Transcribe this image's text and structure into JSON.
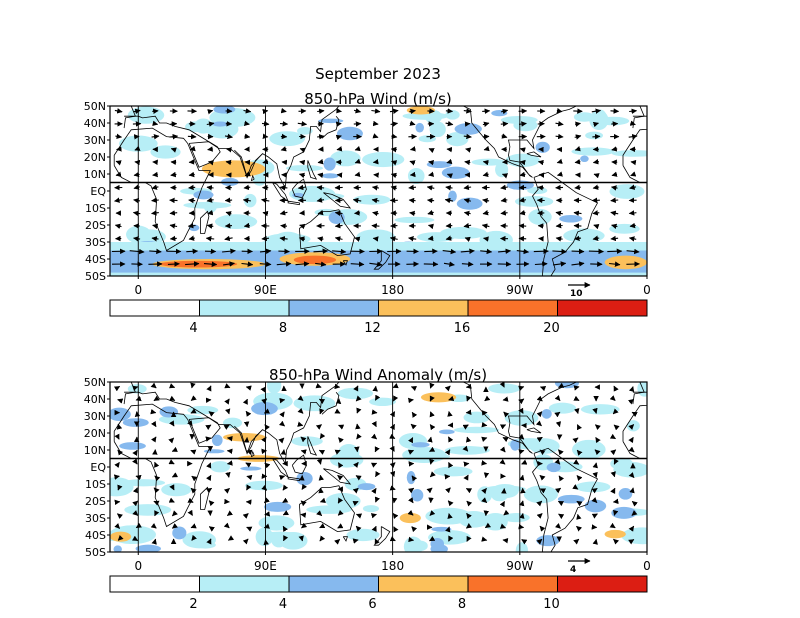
{
  "page": {
    "title": "September 2023"
  },
  "palette": {
    "white": "#ffffff",
    "light_blue": "#b7eef6",
    "mid_blue": "#86b9ee",
    "light_orange": "#fbc05b",
    "orange": "#f9722a",
    "red": "#dc1e13",
    "coast": "#000000",
    "arrow": "#000000"
  },
  "chart_data": [
    {
      "type": "vector-field",
      "title": "850-hPa Wind (m/s)",
      "y_ticks": [
        "50N",
        "40N",
        "30N",
        "20N",
        "10N",
        "EQ",
        "10S",
        "20S",
        "30S",
        "40S",
        "50S"
      ],
      "x_ticks": [
        "0",
        "90E",
        "180",
        "90W",
        "0"
      ],
      "x_range_lon": [
        -20,
        360
      ],
      "y_range_lat": [
        -50,
        50
      ],
      "reference_vector": "10",
      "colorbar": {
        "labels": [
          "4",
          "8",
          "12",
          "16",
          "20"
        ],
        "colors": [
          "white",
          "light_blue",
          "mid_blue",
          "light_orange",
          "orange",
          "red"
        ]
      },
      "color_features": [
        {
          "level": "light_orange",
          "lon": [
            10,
            90
          ],
          "lat": [
            -40,
            -46
          ]
        },
        {
          "level": "orange",
          "lon": [
            15,
            70
          ],
          "lat": [
            -41,
            -45
          ]
        },
        {
          "level": "light_orange",
          "lon": [
            100,
            150
          ],
          "lat": [
            -36,
            -44
          ]
        },
        {
          "level": "orange",
          "lon": [
            110,
            140
          ],
          "lat": [
            -38,
            -43
          ]
        },
        {
          "level": "light_orange",
          "lon": [
            45,
            90
          ],
          "lat": [
            8,
            18
          ]
        },
        {
          "level": "light_orange",
          "lon": [
            190,
            210
          ],
          "lat": [
            45,
            50
          ]
        },
        {
          "level": "light_orange",
          "lon": [
            330,
            360
          ],
          "lat": [
            -38,
            -46
          ]
        }
      ]
    },
    {
      "type": "vector-field",
      "title": "850-hPa Wind Anomaly (m/s)",
      "y_ticks": [
        "50N",
        "40N",
        "30N",
        "20N",
        "10N",
        "EQ",
        "10S",
        "20S",
        "30S",
        "40S",
        "50S"
      ],
      "x_ticks": [
        "0",
        "90E",
        "180",
        "90W",
        "0"
      ],
      "x_range_lon": [
        -20,
        360
      ],
      "y_range_lat": [
        -50,
        50
      ],
      "reference_vector": "4",
      "colorbar": {
        "labels": [
          "2",
          "4",
          "6",
          "8",
          "10"
        ],
        "colors": [
          "white",
          "light_blue",
          "mid_blue",
          "light_orange",
          "orange",
          "red"
        ]
      },
      "color_features": [
        {
          "level": "light_orange",
          "lon": [
            -20,
            -5
          ],
          "lat": [
            -38,
            -44
          ]
        },
        {
          "level": "light_orange",
          "lon": [
            60,
            90
          ],
          "lat": [
            15,
            20
          ]
        },
        {
          "level": "light_orange",
          "lon": [
            70,
            100
          ],
          "lat": [
            3,
            7
          ]
        },
        {
          "level": "light_orange",
          "lon": [
            185,
            200
          ],
          "lat": [
            -27,
            -33
          ]
        },
        {
          "level": "light_orange",
          "lon": [
            330,
            345
          ],
          "lat": [
            -37,
            -42
          ]
        },
        {
          "level": "light_orange",
          "lon": [
            200,
            225
          ],
          "lat": [
            38,
            44
          ]
        }
      ]
    }
  ]
}
